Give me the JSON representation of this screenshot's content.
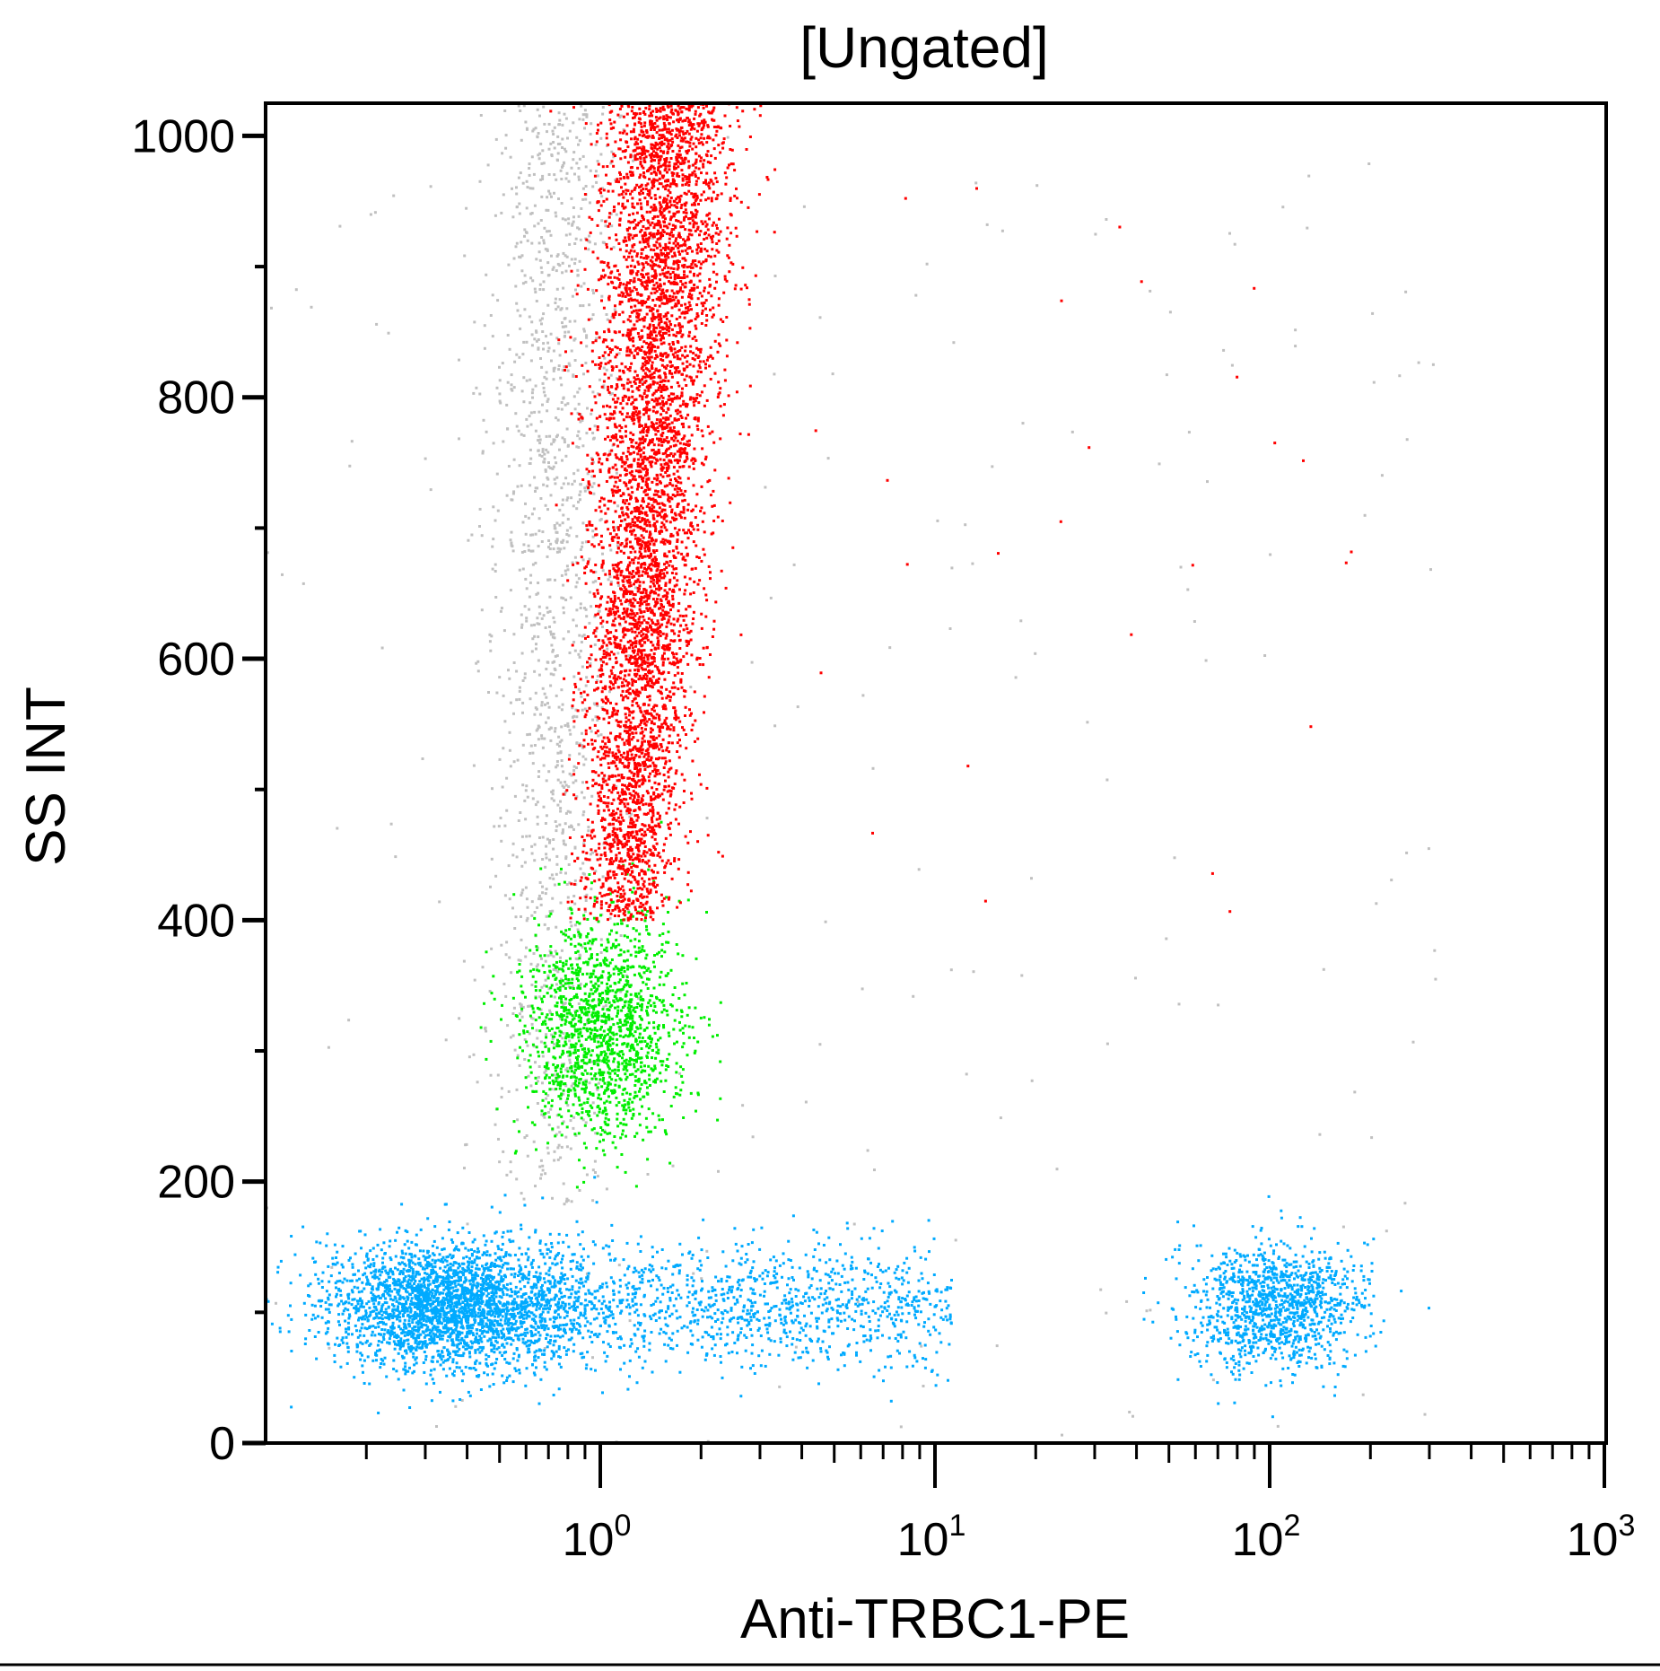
{
  "chart_data": {
    "type": "scatter",
    "title": "[Ungated]",
    "xlabel": "Anti-TRBC1-PE",
    "ylabel": "SS INT",
    "xscale": "log",
    "xlim": [
      0.1,
      1000
    ],
    "ylim": [
      0,
      1025
    ],
    "grid": false,
    "legend": "none",
    "xticks": [
      {
        "value": 1,
        "base": "10",
        "exp": "0"
      },
      {
        "value": 10,
        "base": "10",
        "exp": "1"
      },
      {
        "value": 100,
        "base": "10",
        "exp": "2"
      },
      {
        "value": 1000,
        "base": "10",
        "exp": "3"
      }
    ],
    "yticks": [
      {
        "value": 0,
        "label": "0"
      },
      {
        "value": 200,
        "label": "200"
      },
      {
        "value": 400,
        "label": "400"
      },
      {
        "value": 600,
        "label": "600"
      },
      {
        "value": 800,
        "label": "800"
      },
      {
        "value": 1000,
        "label": "1000"
      }
    ],
    "populations": [
      {
        "color": "#ff0000",
        "x_center": 1.5,
        "x_range": [
          0.8,
          3
        ],
        "y_range": [
          400,
          1025
        ],
        "approx_count": 6000,
        "note_offscale_top": true
      },
      {
        "color": "#00ee00",
        "x_center": 1.0,
        "x_range": [
          0.4,
          5
        ],
        "y_center": 320,
        "y_range": [
          210,
          430
        ],
        "approx_count": 1500
      },
      {
        "color": "#c0c0c0",
        "x_center": 0.7,
        "x_range": [
          0.3,
          1.2
        ],
        "y_range": [
          180,
          1025
        ],
        "approx_count": 1500
      },
      {
        "color": "#00aaff",
        "x_center": 0.4,
        "x_range": [
          0.1,
          12
        ],
        "y_center": 105,
        "y_range": [
          40,
          180
        ],
        "approx_count": 4000
      },
      {
        "color": "#00aaff",
        "x_center": 100,
        "x_range": [
          50,
          300
        ],
        "y_center": 105,
        "y_range": [
          50,
          170
        ],
        "approx_count": 1200
      }
    ]
  }
}
